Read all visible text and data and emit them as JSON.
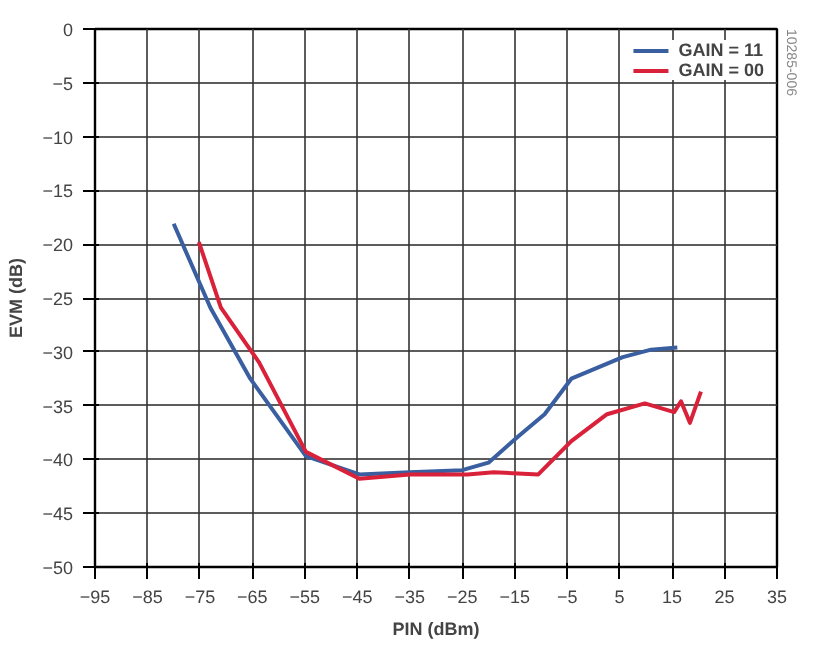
{
  "chart_data": {
    "type": "line",
    "xlabel": "PIN (dBm)",
    "ylabel": "EVM (dB)",
    "xlim": [
      -95,
      35
    ],
    "xticks": [
      -95,
      -85,
      -75,
      -65,
      -55,
      -45,
      -35,
      -25,
      -15,
      -5,
      5,
      15,
      25,
      35
    ],
    "ylim": [
      -50,
      0
    ],
    "yticks": [
      -50,
      -45,
      -40,
      -35,
      -30,
      -25,
      -20,
      -15,
      -10,
      -5,
      0
    ],
    "grid": true,
    "legend": "top right",
    "line_style": "solid",
    "marker": "none",
    "annotations": [
      "10285-006"
    ],
    "series": [
      {
        "name": "GAIN = 11",
        "color": "#3a5fa0",
        "x": [
          -80,
          -73,
          -65.4,
          -54.8,
          -44.6,
          -35,
          -25,
          -20,
          -14.4,
          -9.3,
          -4.2,
          5.6,
          11,
          16
        ],
        "values": [
          -18.1,
          -25.9,
          -32.5,
          -39.7,
          -41.4,
          -41.2,
          -41,
          -40.3,
          -37.9,
          -35.8,
          -32.5,
          -30.5,
          -29.8,
          -29.6
        ]
      },
      {
        "name": "GAIN = 00",
        "color": "#d9213a",
        "x": [
          -75.2,
          -71,
          -63.7,
          -54.8,
          -44.6,
          -35,
          -24,
          -19,
          -10.5,
          -4.2,
          2.6,
          9.8,
          15.4,
          16.7,
          18.4,
          20.5
        ],
        "values": [
          -19.8,
          -25.9,
          -31,
          -39.3,
          -41.8,
          -41.4,
          -41.4,
          -41.2,
          -41.4,
          -38.3,
          -35.8,
          -34.8,
          -35.6,
          -34.6,
          -36.6,
          -33.7
        ]
      }
    ]
  }
}
